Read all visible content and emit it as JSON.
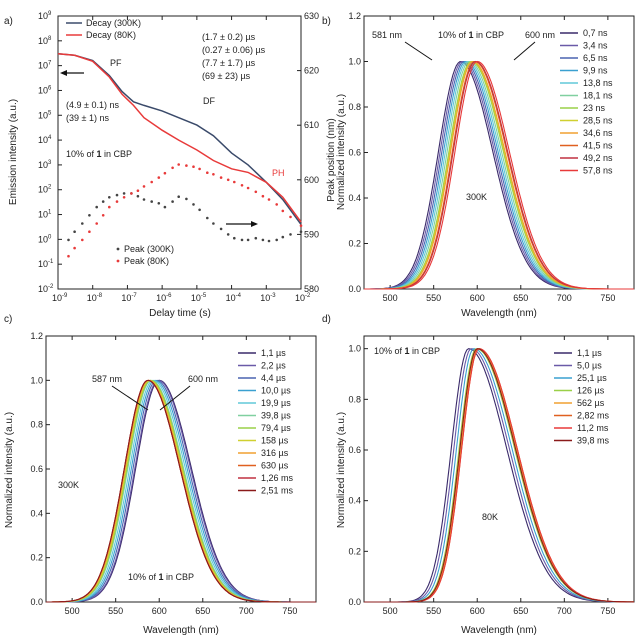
{
  "chart_data": [
    {
      "panel": "a)",
      "type": "line",
      "x_scale": "log",
      "y_scale": "log",
      "xlim": [
        1e-09,
        0.01
      ],
      "ylim": [
        0.01,
        1000000000.0
      ],
      "y2lim": [
        580,
        630
      ],
      "xlabel": "Delay time (s)",
      "ylabel": "Emission intensity (a.u.)",
      "y2label": "Peak position (nm)",
      "x_ticks": [
        {
          "v": 1e-09,
          "m": "10",
          "e": "-9"
        },
        {
          "v": 1e-08,
          "m": "10",
          "e": "-8"
        },
        {
          "v": 1e-07,
          "m": "10",
          "e": "-7"
        },
        {
          "v": 1e-06,
          "m": "10",
          "e": "-6"
        },
        {
          "v": 1e-05,
          "m": "10",
          "e": "-5"
        },
        {
          "v": 0.0001,
          "m": "10",
          "e": "-4"
        },
        {
          "v": 0.001,
          "m": "10",
          "e": "-3"
        },
        {
          "v": 0.01,
          "m": "10",
          "e": "-2"
        }
      ],
      "y_ticks": [
        {
          "v": 0.01,
          "m": "10",
          "e": "-2"
        },
        {
          "v": 0.1,
          "m": "10",
          "e": "-1"
        },
        {
          "v": 1,
          "m": "10",
          "e": "0"
        },
        {
          "v": 10,
          "m": "10",
          "e": "1"
        },
        {
          "v": 100,
          "m": "10",
          "e": "2"
        },
        {
          "v": 1000,
          "m": "10",
          "e": "3"
        },
        {
          "v": 10000.0,
          "m": "10",
          "e": "4"
        },
        {
          "v": 100000.0,
          "m": "10",
          "e": "5"
        },
        {
          "v": 1000000.0,
          "m": "10",
          "e": "6"
        },
        {
          "v": 10000000.0,
          "m": "10",
          "e": "7"
        },
        {
          "v": 100000000.0,
          "m": "10",
          "e": "8"
        },
        {
          "v": 1000000000.0,
          "m": "10",
          "e": "9"
        }
      ],
      "y2_ticks": [
        580,
        590,
        600,
        610,
        620,
        630
      ],
      "legend": [
        "Decay (300K)",
        "Decay (80K)"
      ],
      "legend2": [
        "Peak (300K)",
        "Peak (80K)"
      ],
      "annotations": {
        "pf": "PF",
        "df": "DF",
        "ph": "PH",
        "fit_300k_prompt": "(4.9 ± 0.1) ns",
        "fit_80k_prompt": "(39 ± 1) ns",
        "fit_300k_delayed": "(1.7 ± 0.2) µs",
        "fit_300k_delayed2": "(0.27 ± 0.06) µs",
        "fit_80k_delayed": "(7.7 ± 1.7) µs",
        "fit_80k_delayed2": "(69 ± 23) µs",
        "sample_pre": "10% of ",
        "sample_num": "1",
        "sample_post": " in CBP"
      },
      "series": [
        {
          "name": "Decay (300K)",
          "color": "#3a4a6a",
          "axis": "left",
          "x": [
            1e-09,
            3e-09,
            1e-08,
            3e-08,
            7e-08,
            1.5e-07,
            3e-07,
            1e-06,
            3e-06,
            1e-05,
            3e-05,
            0.0001,
            0.0003,
            0.001,
            0.003,
            0.01
          ],
          "y": [
            30000000.0,
            26000000.0,
            16000000.0,
            4000000.0,
            900000.0,
            350000.0,
            250000.0,
            150000.0,
            80000.0,
            40000.0,
            15000.0,
            3000.0,
            1000.0,
            200,
            40,
            4
          ]
        },
        {
          "name": "Decay (80K)",
          "color": "#e83a3a",
          "axis": "left",
          "x": [
            1e-09,
            3e-09,
            1e-08,
            3e-08,
            7e-08,
            1.5e-07,
            3e-07,
            1e-06,
            3e-06,
            1e-05,
            3e-05,
            0.0001,
            0.0003,
            0.001,
            0.003,
            0.01
          ],
          "y": [
            30000000.0,
            26000000.0,
            15000000.0,
            3500000.0,
            700000.0,
            250000.0,
            80000.0,
            25000.0,
            10000.0,
            4000.0,
            1500.0,
            700,
            500,
            200,
            50,
            5
          ]
        },
        {
          "name": "Peak (300K)",
          "color": "#444444",
          "axis": "right",
          "x": [
            2e-09,
            3e-09,
            5e-09,
            8e-09,
            1.3e-08,
            2e-08,
            3e-08,
            5e-08,
            8e-08,
            1.3e-07,
            2e-07,
            3e-07,
            5e-07,
            8e-07,
            1.2e-06,
            2e-06,
            3e-06,
            5e-06,
            8e-06,
            1.2e-05,
            2e-05,
            3e-05,
            5e-05,
            8e-05,
            0.00012,
            0.0002,
            0.0003,
            0.0005,
            0.0008,
            0.0012,
            0.002,
            0.003,
            0.005,
            0.01
          ],
          "y": [
            589.0,
            590.5,
            592.0,
            593.5,
            595.0,
            596.0,
            596.8,
            597.2,
            597.5,
            597.5,
            597.0,
            596.4,
            596.0,
            595.7,
            595.0,
            596.0,
            596.9,
            596.5,
            595.5,
            594.5,
            593.0,
            592.0,
            591.0,
            590.0,
            589.3,
            589.0,
            589.0,
            589.3,
            589.0,
            588.8,
            589.0,
            589.5,
            590.0,
            590.5
          ]
        },
        {
          "name": "Peak (80K)",
          "color": "#e83a3a",
          "axis": "right",
          "x": [
            2e-09,
            3e-09,
            5e-09,
            8e-09,
            1.3e-08,
            2e-08,
            3e-08,
            5e-08,
            8e-08,
            1.3e-07,
            2e-07,
            3e-07,
            5e-07,
            8e-07,
            1.2e-06,
            2e-06,
            3e-06,
            5e-06,
            8e-06,
            1.2e-05,
            2e-05,
            3e-05,
            5e-05,
            8e-05,
            0.00012,
            0.0002,
            0.0003,
            0.0005,
            0.0008,
            0.0012,
            0.002,
            0.003,
            0.005,
            0.01
          ],
          "y": [
            586.0,
            587.5,
            589.0,
            590.5,
            592.0,
            593.5,
            595.0,
            596.0,
            596.8,
            597.5,
            598.0,
            598.8,
            599.6,
            600.4,
            601.2,
            602.2,
            602.8,
            602.6,
            602.4,
            602.0,
            601.3,
            601.0,
            600.4,
            600.0,
            599.6,
            599.0,
            598.5,
            597.8,
            597.0,
            596.4,
            595.5,
            594.3,
            593.2,
            591.6
          ]
        }
      ]
    },
    {
      "panel": "b)",
      "type": "line",
      "xlim": [
        470,
        780
      ],
      "ylim": [
        0,
        1.2
      ],
      "xlabel": "Wavelength (nm)",
      "ylabel": "Normalized intensity (a.u.)",
      "x_ticks": [
        500,
        550,
        600,
        650,
        700,
        750
      ],
      "y_ticks": [
        "0.0",
        "0.2",
        "0.4",
        "0.6",
        "0.8",
        "1.0",
        "1.2"
      ],
      "annotations": {
        "left_peak": "581 nm",
        "right_peak": "600 nm",
        "temp": "300K",
        "sample_pre": "10% of ",
        "sample_num": "1",
        "sample_post": " in CBP"
      },
      "curve_model": {
        "rise_width_nm": 36,
        "fall_width_nm": 52
      },
      "series": [
        {
          "name": "0,7 ns",
          "peak_nm": 581,
          "color": "#3a2a6a"
        },
        {
          "name": "3,4 ns",
          "peak_nm": 583,
          "color": "#6a5aa8"
        },
        {
          "name": "6,5 ns",
          "peak_nm": 585,
          "color": "#4a64b0"
        },
        {
          "name": "9,9 ns",
          "peak_nm": 587,
          "color": "#3aa0d0"
        },
        {
          "name": "13,8 ns",
          "peak_nm": 589,
          "color": "#60c8d8"
        },
        {
          "name": "18,1 ns",
          "peak_nm": 591,
          "color": "#80d0a0"
        },
        {
          "name": "23 ns",
          "peak_nm": 593,
          "color": "#9ad048"
        },
        {
          "name": "28,5 ns",
          "peak_nm": 594,
          "color": "#d0d030"
        },
        {
          "name": "34,6 ns",
          "peak_nm": 595,
          "color": "#f0a030"
        },
        {
          "name": "41,5 ns",
          "peak_nm": 597,
          "color": "#e06020"
        },
        {
          "name": "49,2 ns",
          "peak_nm": 598,
          "color": "#c03040"
        },
        {
          "name": "57,8 ns",
          "peak_nm": 600,
          "color": "#e83a3a"
        }
      ]
    },
    {
      "panel": "c)",
      "type": "line",
      "xlim": [
        470,
        780
      ],
      "ylim": [
        0,
        1.2
      ],
      "xlabel": "Wavelength (nm)",
      "ylabel": "Normalized intensity (a.u.)",
      "x_ticks": [
        500,
        550,
        600,
        650,
        700,
        750
      ],
      "y_ticks": [
        "0.0",
        "0.2",
        "0.4",
        "0.6",
        "0.8",
        "1.0",
        "1.2"
      ],
      "annotations": {
        "left_peak": "587 nm",
        "right_peak": "600 nm",
        "temp": "300K",
        "sample_pre": "10% of ",
        "sample_num": "1",
        "sample_post": " in CBP"
      },
      "curve_model": {
        "rise_width_nm": 38,
        "fall_width_nm": 52
      },
      "series": [
        {
          "name": "1,1 µs",
          "peak_nm": 600,
          "color": "#3a2a6a"
        },
        {
          "name": "2,2 µs",
          "peak_nm": 599,
          "color": "#6a5aa8"
        },
        {
          "name": "4,4 µs",
          "peak_nm": 597,
          "color": "#4a64b0"
        },
        {
          "name": "10,0 µs",
          "peak_nm": 595,
          "color": "#3aa0d0"
        },
        {
          "name": "19,9 µs",
          "peak_nm": 593,
          "color": "#60c8d8"
        },
        {
          "name": "39,8 µs",
          "peak_nm": 591,
          "color": "#80d0a0"
        },
        {
          "name": "79,4 µs",
          "peak_nm": 590,
          "color": "#9ad048"
        },
        {
          "name": "158 µs",
          "peak_nm": 589,
          "color": "#d0d030"
        },
        {
          "name": "316 µs",
          "peak_nm": 588,
          "color": "#f0a030"
        },
        {
          "name": "630 µs",
          "peak_nm": 587,
          "color": "#e06020"
        },
        {
          "name": "1,26 ms",
          "peak_nm": 587,
          "color": "#c03040"
        },
        {
          "name": "2,51 ms",
          "peak_nm": 587,
          "color": "#8a1a1a"
        }
      ]
    },
    {
      "panel": "d)",
      "type": "line",
      "xlim": [
        470,
        780
      ],
      "ylim": [
        0,
        1.05
      ],
      "xlabel": "Wavelength (nm)",
      "ylabel": "Normalized intensity (a.u.)",
      "x_ticks": [
        500,
        550,
        600,
        650,
        700,
        750
      ],
      "y_ticks": [
        "0.0",
        "0.2",
        "0.4",
        "0.6",
        "0.8",
        "1.0"
      ],
      "annotations": {
        "temp": "80K",
        "sample_pre": "10% of ",
        "sample_num": "1",
        "sample_post": " in CBP"
      },
      "curve_model": {
        "rise_width_nm": 28,
        "fall_width_nm": 62
      },
      "series": [
        {
          "name": "1,1 µs",
          "peak_nm": 590,
          "color": "#3a2a6a"
        },
        {
          "name": "5,0 µs",
          "peak_nm": 593,
          "color": "#6a5aa8"
        },
        {
          "name": "25,1 µs",
          "peak_nm": 596,
          "color": "#3aa0d0"
        },
        {
          "name": "126 µs",
          "peak_nm": 599,
          "color": "#9ad048"
        },
        {
          "name": "562 µs",
          "peak_nm": 601,
          "color": "#f0a030"
        },
        {
          "name": "2,82 ms",
          "peak_nm": 602,
          "color": "#e06020"
        },
        {
          "name": "11,2 ms",
          "peak_nm": 602,
          "color": "#e83a3a"
        },
        {
          "name": "39,8 ms",
          "peak_nm": 600,
          "color": "#8a1a1a"
        }
      ]
    }
  ]
}
